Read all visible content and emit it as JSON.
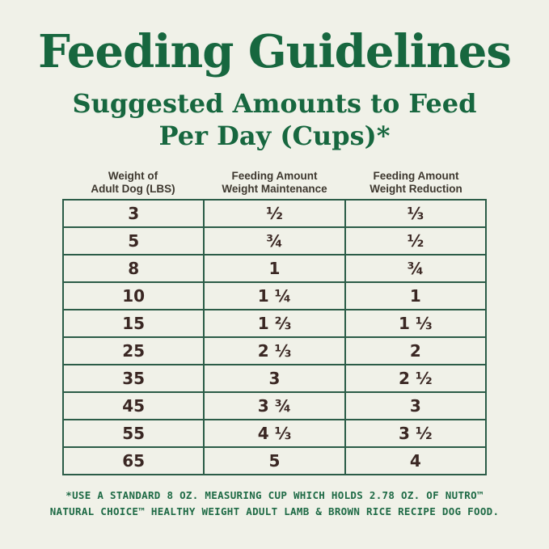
{
  "theme": {
    "background_color": "#f0f1e8",
    "title_green": "#17673f",
    "table_border_green": "#2b5c47",
    "cell_text_brown": "#3a2723",
    "column_header_color": "#3e382f",
    "footnote_green": "#1e6a45"
  },
  "header": {
    "title": "Feeding Guidelines",
    "subtitle_line1": "Suggested Amounts to Feed",
    "subtitle_line2": "Per Day (Cups)*"
  },
  "table_display": {
    "columns": [
      {
        "line1": "Weight of",
        "line2": "Adult Dog (LBS)"
      },
      {
        "line1": "Feeding Amount",
        "line2": "Weight Maintenance"
      },
      {
        "line1": "Feeding Amount",
        "line2": "Weight Reduction"
      }
    ]
  },
  "footnote": {
    "line1": "*USE A STANDARD 8 OZ. MEASURING CUP WHICH HOLDS 2.78 OZ. OF NUTRO™",
    "line2": "NATURAL CHOICE™ HEALTHY WEIGHT ADULT LAMB & BROWN RICE RECIPE DOG FOOD."
  },
  "chart_data": {
    "type": "table",
    "title": "Feeding Guidelines",
    "subtitle": "Suggested Amounts to Feed Per Day (Cups)*",
    "columns": [
      "Weight of Adult Dog (LBS)",
      "Feeding Amount Weight Maintenance",
      "Feeding Amount Weight Reduction"
    ],
    "rows": [
      [
        "3",
        "½",
        "⅓"
      ],
      [
        "5",
        "¾",
        "½"
      ],
      [
        "8",
        "1",
        "¾"
      ],
      [
        "10",
        "1 ¼",
        "1"
      ],
      [
        "15",
        "1 ⅔",
        "1 ⅓"
      ],
      [
        "25",
        "2 ⅓",
        "2"
      ],
      [
        "35",
        "3",
        "2 ½"
      ],
      [
        "45",
        "3 ¾",
        "3"
      ],
      [
        "55",
        "4 ⅓",
        "3 ½"
      ],
      [
        "65",
        "5",
        "4"
      ]
    ],
    "footnote": "*USE A STANDARD 8 OZ. MEASURING CUP WHICH HOLDS 2.78 OZ. OF NUTRO™ NATURAL CHOICE™ HEALTHY WEIGHT ADULT LAMB & BROWN RICE RECIPE DOG FOOD."
  }
}
